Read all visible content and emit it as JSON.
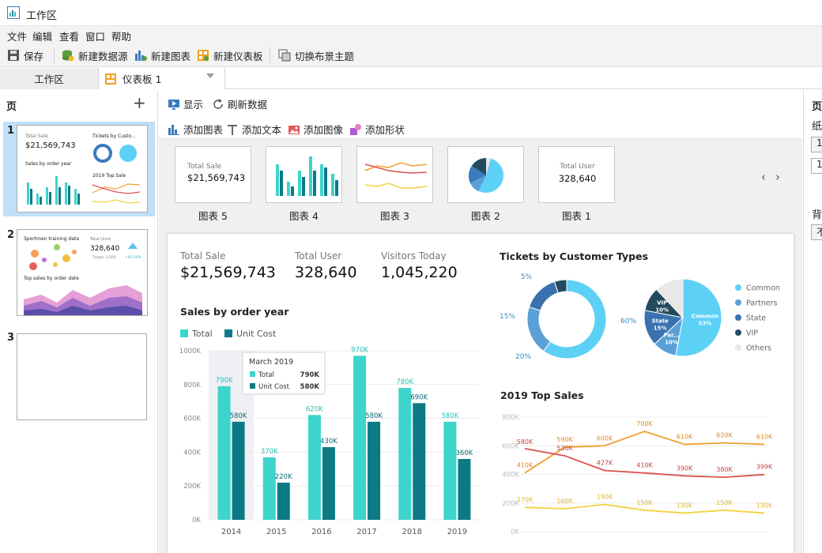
{
  "window": {
    "title": "工作区"
  },
  "menu": [
    "文件",
    "编辑",
    "查看",
    "窗口",
    "帮助"
  ],
  "toolbar": {
    "save": "保存",
    "new_datasource": "新建数据源",
    "new_chart": "新建图表",
    "new_dashboard": "新建仪表板",
    "switch_theme": "切换布景主题"
  },
  "tabs": {
    "workspace": "工作区",
    "dashboard": "仪表板 1"
  },
  "pages_panel": {
    "title": "页",
    "pages": [
      "1",
      "2",
      "3"
    ]
  },
  "thumbs": {
    "p1": {
      "total_sale_label": "Total Sale",
      "total_sale_value": "$21,569,743",
      "tickets_title": "Tickets by Custo...",
      "sales_title": "Sales by order year",
      "top_sale_title": "2019 Top Sale"
    },
    "p2": {
      "sport_title": "Sportmen training data",
      "total_units_label": "Total Units",
      "total_units_value": "328,640",
      "target_text": "Target: 3,000",
      "percent_text": "+95.00%",
      "top_sales_title": "Top sales by order date"
    }
  },
  "mid_toolbar": {
    "display": "显示",
    "refresh": "刷新数据",
    "add_chart": "添加图表",
    "add_text": "添加文本",
    "add_image": "添加图像",
    "add_shape": "添加形状"
  },
  "chart_cards": [
    {
      "label": "图表 5",
      "caption": "Total Sale",
      "value": "$21,569,743"
    },
    {
      "label": "图表 4"
    },
    {
      "label": "图表 3"
    },
    {
      "label": "图表 2"
    },
    {
      "label": "图表 1",
      "caption": "Total User",
      "value": "328,640"
    }
  ],
  "kpis": [
    {
      "label": "Total Sale",
      "value": "$21,569,743"
    },
    {
      "label": "Total User",
      "value": "328,640"
    },
    {
      "label": "Visitors Today",
      "value": "1,045,220"
    }
  ],
  "right_panel": {
    "label_top": "页",
    "label_paper": "纸",
    "box1": "1",
    "box2": "1,",
    "label_bg": "背",
    "box3": "不"
  },
  "colors": {
    "total": "#3dd4cc",
    "unit_cost": "#0b7a85",
    "accent_blue": "#3a7bbf"
  },
  "chart_data": [
    {
      "type": "bar",
      "title": "Sales by order year",
      "categories": [
        "2014",
        "2015",
        "2016",
        "2017",
        "2018",
        "2019"
      ],
      "series": [
        {
          "name": "Total",
          "values": [
            790,
            370,
            620,
            970,
            780,
            580
          ],
          "labels": [
            "790K",
            "370K",
            "620K",
            "970K",
            "780K",
            "580K"
          ]
        },
        {
          "name": "Unit Cost",
          "values": [
            580,
            220,
            430,
            580,
            690,
            360
          ],
          "labels": [
            "580K",
            "220K",
            "430K",
            "580K",
            "690K",
            "360K"
          ]
        }
      ],
      "yticks": [
        "0K",
        "200K",
        "400K",
        "600K",
        "800K",
        "1000K"
      ],
      "ylim": [
        0,
        1000
      ],
      "tooltip": {
        "title": "March 2019",
        "rows": [
          {
            "name": "Total",
            "value": "790K"
          },
          {
            "name": "Unit Cost",
            "value": "580K"
          }
        ]
      }
    },
    {
      "type": "pie",
      "title": "Tickets by Customer Types",
      "donut": {
        "values": [
          60,
          20,
          15,
          5
        ],
        "labels": [
          "60%",
          "20%",
          "15%",
          "5%"
        ]
      },
      "pie": {
        "values": [
          53,
          10,
          15,
          10,
          12
        ],
        "labels": [
          "Common\n53%",
          "Par...\n10%",
          "State\n15%",
          "VIP\n10%",
          ""
        ]
      },
      "legend": [
        "Common",
        "Partners",
        "State",
        "VIP",
        "Others"
      ]
    },
    {
      "type": "line",
      "title": "2019 Top Sales",
      "yticks": [
        "0K",
        "200K",
        "400K",
        "600K",
        "800K"
      ],
      "ylim": [
        0,
        800
      ],
      "series": [
        {
          "values": [
            410,
            590,
            600,
            700,
            610,
            620,
            610
          ],
          "labels": [
            "410K",
            "590K",
            "600K",
            "700K",
            "610K",
            "620K",
            "610K"
          ]
        },
        {
          "values": [
            580,
            530,
            427,
            410,
            390,
            380,
            399
          ],
          "labels": [
            "580K",
            "530K",
            "427K",
            "410K",
            "390K",
            "380K",
            "399K"
          ]
        },
        {
          "values": [
            170,
            160,
            190,
            150,
            130,
            150,
            130
          ],
          "labels": [
            "170K",
            "160K",
            "190K",
            "150K",
            "130K",
            "150K",
            "130K"
          ]
        }
      ]
    }
  ]
}
